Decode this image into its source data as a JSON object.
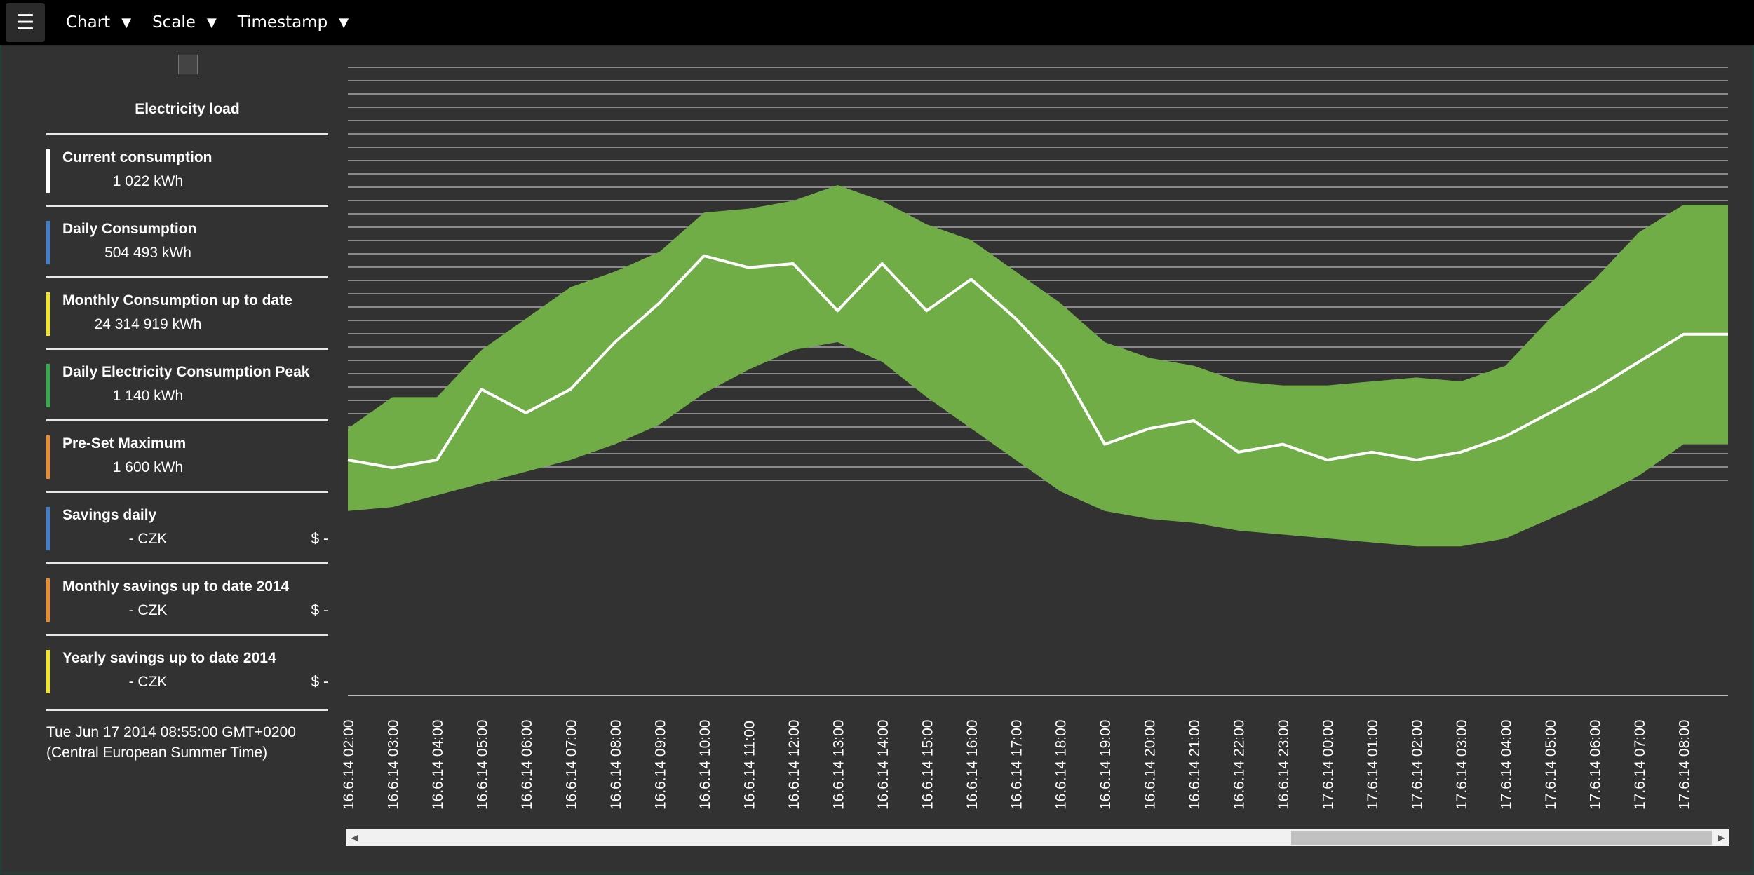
{
  "topbar": {
    "menu_icon": "hamburger-icon",
    "menus": [
      {
        "label": "Chart",
        "caret": "▼"
      },
      {
        "label": "Scale",
        "caret": "▼"
      },
      {
        "label": "Timestamp",
        "caret": "▼"
      }
    ]
  },
  "sidebar": {
    "title": "Electricity load",
    "stats": [
      {
        "label": "Current consumption",
        "value": "1 022 kWh",
        "usd": "",
        "color": "#ffffff"
      },
      {
        "label": "Daily Consumption",
        "value": "504 493 kWh",
        "usd": "",
        "color": "#3f7fd1"
      },
      {
        "label": "Monthly Consumption up to date",
        "value": "24 314 919 kWh",
        "usd": "",
        "color": "#f2e51c"
      },
      {
        "label": "Daily Electricity Consumption Peak",
        "value": "1 140 kWh",
        "usd": "",
        "color": "#2fae4a"
      },
      {
        "label": "Pre-Set Maximum",
        "value": "1 600 kWh",
        "usd": "",
        "color": "#f08a2a"
      },
      {
        "label": "Savings daily",
        "value": "- CZK",
        "usd": "$ -",
        "color": "#3f7fd1"
      },
      {
        "label": "Monthly savings up to date 2014",
        "value": "- CZK",
        "usd": "$ -",
        "color": "#f08a2a"
      },
      {
        "label": "Yearly savings up to date 2014",
        "value": "- CZK",
        "usd": "$ -",
        "color": "#f2e51c"
      }
    ],
    "timestamp_line1": "Tue Jun 17 2014 08:55:00 GMT+0200",
    "timestamp_line2": "(Central European Summer Time)"
  },
  "chart_data": {
    "type": "area",
    "categories": [
      "16.6.14 02:00",
      "16.6.14 03:00",
      "16.6.14 04:00",
      "16.6.14 05:00",
      "16.6.14 06:00",
      "16.6.14 07:00",
      "16.6.14 08:00",
      "16.6.14 09:00",
      "16.6.14 10:00",
      "16.6.14 11:00",
      "16.6.14 12:00",
      "16.6.14 13:00",
      "16.6.14 14:00",
      "16.6.14 15:00",
      "16.6.14 16:00",
      "16.6.14 17:00",
      "16.6.14 18:00",
      "16.6.14 19:00",
      "16.6.14 20:00",
      "16.6.14 21:00",
      "16.6.14 22:00",
      "16.6.14 23:00",
      "17.6.14 00:00",
      "17.6.14 01:00",
      "17.6.14 02:00",
      "17.6.14 03:00",
      "17.6.14 04:00",
      "17.6.14 05:00",
      "17.6.14 06:00",
      "17.6.14 07:00",
      "17.6.14 08:00"
    ],
    "band_upper": [
      680,
      760,
      760,
      880,
      960,
      1040,
      1080,
      1130,
      1230,
      1240,
      1260,
      1300,
      1260,
      1200,
      1160,
      1080,
      1000,
      900,
      860,
      840,
      800,
      790,
      790,
      800,
      810,
      800,
      840,
      960,
      1060,
      1180,
      1250
    ],
    "band_lower": [
      470,
      480,
      510,
      540,
      570,
      600,
      640,
      690,
      770,
      830,
      880,
      900,
      850,
      760,
      680,
      600,
      520,
      470,
      450,
      440,
      420,
      410,
      400,
      390,
      380,
      380,
      400,
      450,
      500,
      560,
      640
    ],
    "current": [
      600,
      580,
      600,
      780,
      720,
      780,
      900,
      1000,
      1120,
      1090,
      1100,
      980,
      1100,
      980,
      1060,
      960,
      840,
      640,
      680,
      700,
      620,
      640,
      600,
      620,
      600,
      620,
      660,
      720,
      780,
      850,
      920
    ],
    "preset_maximum": 1600,
    "xlim_hours": [
      0,
      31
    ],
    "grid": true,
    "colors": {
      "band": "#70ad47",
      "current": "#ffffff",
      "over": "#e03020",
      "grid": "#a8a8a8"
    }
  }
}
